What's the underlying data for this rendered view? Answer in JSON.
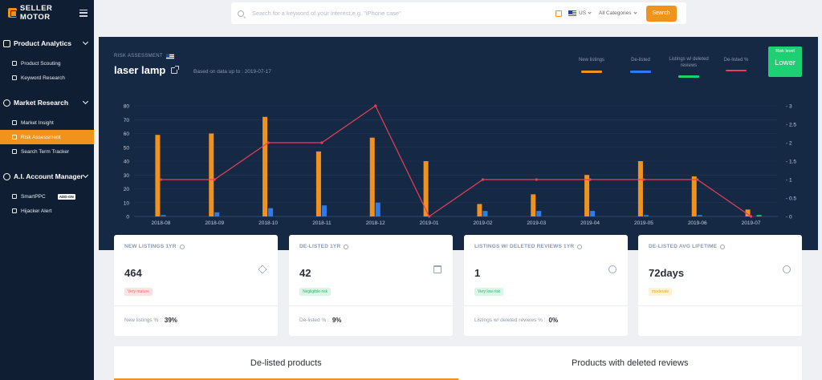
{
  "brand": {
    "name": "SELLER MOTOR"
  },
  "sidebar": {
    "sections": [
      {
        "label": "Product Analytics",
        "items": [
          {
            "label": "Product Scouting"
          },
          {
            "label": "Keyword Research"
          }
        ]
      },
      {
        "label": "Market Research",
        "items": [
          {
            "label": "Market Insight"
          },
          {
            "label": "Risk Assessment",
            "active": true
          },
          {
            "label": "Search Term Tracker"
          }
        ]
      },
      {
        "label": "A.I. Account Manager",
        "items": [
          {
            "label": "SmartPPC",
            "badge": "ADD-ON"
          },
          {
            "label": "Hijacker Alert"
          }
        ]
      }
    ]
  },
  "search": {
    "placeholder": "Search for a keyword of your interest,e.g. \"iPhone case\"",
    "value": "",
    "country": "US",
    "category": "All Categories",
    "button_label": "Search"
  },
  "panel": {
    "section_label": "RISK ASSESSMENT",
    "keyword": "laser lamp",
    "data_up_to": "Based on data up to : 2019-07-17",
    "risk_level_label": "Risk level",
    "risk_level_value": "Lower"
  },
  "colors": {
    "orange": "#f0931e",
    "blue": "#2f7bea",
    "green": "#1fcf73",
    "red": "#e8405a"
  },
  "chart_data": {
    "type": "bar",
    "categories": [
      "2018-08",
      "2018-09",
      "2018-10",
      "2018-11",
      "2018-12",
      "2019-01",
      "2019-02",
      "2019-03",
      "2019-04",
      "2019-05",
      "2019-06",
      "2019-07"
    ],
    "series": [
      {
        "name": "New listings",
        "type": "bar",
        "axis": "left",
        "color": "#f0931e",
        "values": [
          59,
          60,
          72,
          47,
          57,
          40,
          9,
          16,
          30,
          40,
          29,
          5
        ]
      },
      {
        "name": "De-listed",
        "type": "bar",
        "axis": "left",
        "color": "#2f7bea",
        "values": [
          1,
          3,
          6,
          8,
          10,
          0,
          4,
          4,
          4,
          1,
          1,
          0
        ]
      },
      {
        "name": "Listings w/ deleted reviews",
        "type": "bar",
        "axis": "left",
        "color": "#1fcf73",
        "values": [
          0,
          0,
          0,
          0,
          0,
          0,
          0,
          0,
          0,
          0,
          0,
          1
        ]
      },
      {
        "name": "De-listed %",
        "type": "line",
        "axis": "right",
        "color": "#e8405a",
        "values": [
          1,
          1,
          2,
          2,
          3,
          0,
          1,
          1,
          1,
          1,
          1,
          0
        ]
      }
    ],
    "y_left": {
      "ticks": [
        0,
        10,
        20,
        30,
        40,
        50,
        60,
        70,
        80
      ],
      "min": 0,
      "max": 80
    },
    "y_right": {
      "ticks": [
        "0",
        "0.5",
        "1",
        "1.5",
        "2",
        "2.5",
        "3"
      ],
      "min": 0,
      "max": 3
    },
    "grid": true,
    "legend": "top-right"
  },
  "cards": [
    {
      "title": "NEW LISTINGS 1YR",
      "value": "464",
      "badge": "Very mature",
      "foot_label": "New listings % :",
      "foot_value": "39%"
    },
    {
      "title": "DE-LISTED 1YR",
      "value": "42",
      "badge": "Negligible risk",
      "foot_label": "De-listed % :",
      "foot_value": "9%"
    },
    {
      "title": "LISTINGS W/ DELETED REVIEWS 1YR",
      "value": "1",
      "badge": "Very low risk",
      "foot_label": "Listings w/ deleted reviews % :",
      "foot_value": "0%"
    },
    {
      "title": "DE-LISTED AVG LIFETIME",
      "value": "72days",
      "badge": "moderate",
      "foot_label": "",
      "foot_value": ""
    }
  ],
  "tabs": [
    {
      "label": "De-listed products"
    },
    {
      "label": "Products with deleted reviews"
    }
  ]
}
